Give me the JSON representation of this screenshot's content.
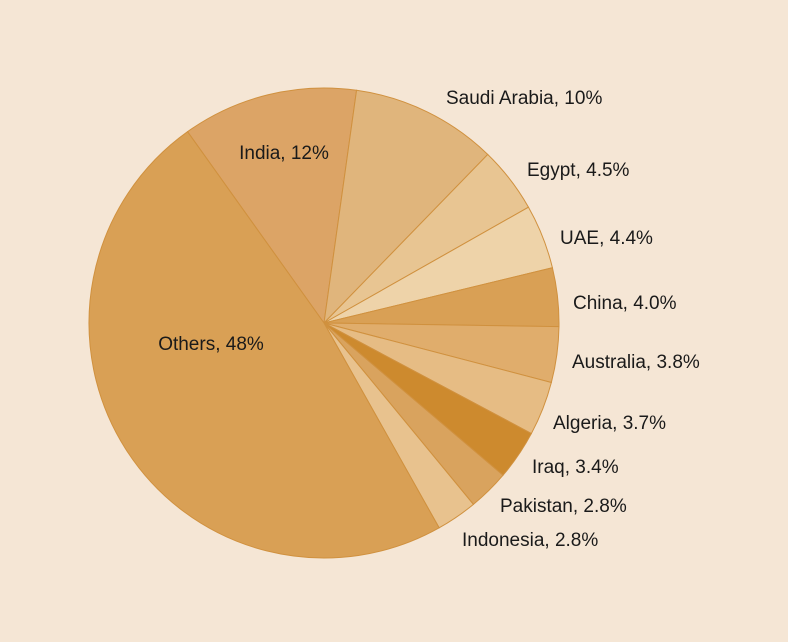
{
  "chart_data": {
    "type": "pie",
    "labels": [
      "India, 12%",
      "Saudi Arabia, 10%",
      "Egypt, 4.5%",
      "UAE, 4.4%",
      "China, 4.0%",
      "Australia, 3.8%",
      "Algeria, 3.7%",
      "Iraq, 3.4%",
      "Pakistan, 2.8%",
      "Indonesia, 2.8%",
      "Others, 48%"
    ],
    "values": [
      12,
      10,
      4.5,
      4.4,
      4.0,
      3.8,
      3.7,
      3.4,
      2.8,
      2.8,
      48
    ],
    "colors": [
      "#dca466",
      "#e0b57c",
      "#e8c592",
      "#eed3a9",
      "#d9a055",
      "#e0ad6c",
      "#e6bc84",
      "#cd8a2e",
      "#d9a35e",
      "#e8c28e",
      "#d9a055"
    ]
  }
}
